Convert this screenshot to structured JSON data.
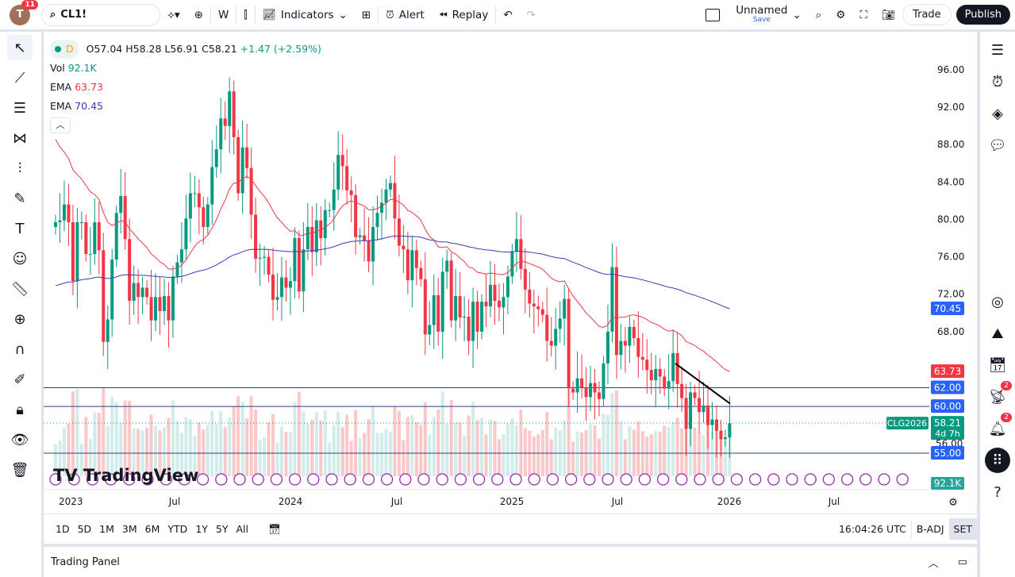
{
  "toolbar": {
    "notifications": "11",
    "avatar": "T",
    "symbol": "CL1!",
    "interval": "W",
    "indicators": "Indicators",
    "alert": "Alert",
    "replay": "Replay",
    "layout_name": "Unnamed",
    "layout_save": "Save",
    "trade": "Trade",
    "publish": "Publish"
  },
  "legend": {
    "interval": "D",
    "open": "O57.04",
    "high": "H58.28",
    "low": "L56.91",
    "close": "C58.21",
    "change": "+1.47 (+2.59%)",
    "vol_label": "Vol",
    "vol": "92.1K",
    "ema1_label": "EMA",
    "ema1": "63.73",
    "ema2_label": "EMA",
    "ema2": "70.45"
  },
  "price_axis": [
    "96.00",
    "92.00",
    "88.00",
    "84.00",
    "80.00",
    "76.00",
    "72.00",
    "68.00"
  ],
  "price_labels": {
    "ema1": "63.73",
    "ema2": "70.45",
    "level1": "62.00",
    "level2": "60.00",
    "level3": "55.00",
    "last": "58.21",
    "countdown": "4d 7h",
    "contract": "CLG2026",
    "volume": "92.1K",
    "partial": "56.00"
  },
  "time_axis": [
    "2023",
    "Jul",
    "2024",
    "Jul",
    "2025",
    "Jul",
    "2026",
    "Jul"
  ],
  "watermark": "TradingView",
  "bottom": {
    "ranges": [
      "1D",
      "5D",
      "1M",
      "3M",
      "6M",
      "YTD",
      "1Y",
      "5Y",
      "All"
    ],
    "time": "16:04:26 UTC",
    "adj": "B-ADJ",
    "session": "SET"
  },
  "panel": {
    "title": "Trading Panel"
  },
  "right_badges": [
    "2",
    "2"
  ],
  "colors": {
    "up": "#089981",
    "down": "#f23645",
    "ema_fast": "#f23645",
    "ema_slow": "#3c3cb4",
    "level": "#2962ff",
    "events": "#9c27b0"
  },
  "chart_data": {
    "type": "candlestick",
    "interval": "weekly",
    "start": "2023-01-02",
    "ylim": [
      53,
      98
    ],
    "levels": [
      62,
      60,
      55
    ],
    "trendline": [
      [
        "2025-09-22",
        64.6
      ],
      [
        "2025-12-29",
        60.3
      ]
    ],
    "closes": [
      79.7,
      79.9,
      81.6,
      79.7,
      73.4,
      79.7,
      79.7,
      76.3,
      76.3,
      79.7,
      76.7,
      66.9,
      69.3,
      75.7,
      80.7,
      82.5,
      77.9,
      71.3,
      73.2,
      71.7,
      72.7,
      71.7,
      69.2,
      71.7,
      70.2,
      71.8,
      69.2,
      73.9,
      75.4,
      76.8,
      80.1,
      82.8,
      82.8,
      81.3,
      79.2,
      81.6,
      85.6,
      87.5,
      90.8,
      90.0,
      93.7,
      88.8,
      82.8,
      87.7,
      85.5,
      80.5,
      75.8,
      75.9,
      76.0,
      74.1,
      71.4,
      71.7,
      73.8,
      72.7,
      73.4,
      78.0,
      72.3,
      76.8,
      79.2,
      76.5,
      79.9,
      78.0,
      81.0,
      81.0,
      83.2,
      86.9,
      85.7,
      83.1,
      82.6,
      78.1,
      78.3,
      77.7,
      75.5,
      79.2,
      80.7,
      81.8,
      83.2,
      83.9,
      80.1,
      77.2,
      76.8,
      73.5,
      76.7,
      74.8,
      73.6,
      67.7,
      68.7,
      71.9,
      68.0,
      74.4,
      75.6,
      69.2,
      71.8,
      69.5,
      69.6,
      67.0,
      71.2,
      68.0,
      71.2,
      70.7,
      73.0,
      71.3,
      70.6,
      71.7,
      73.9,
      76.6,
      77.9,
      74.7,
      72.5,
      71.0,
      70.7,
      70.4,
      69.8,
      67.0,
      66.5,
      68.3,
      69.4,
      71.5,
      61.9,
      61.5,
      63.0,
      62.0,
      61.0,
      62.5,
      61.5,
      60.8,
      64.6,
      68.0,
      74.9,
      65.5,
      67.0,
      66.5,
      68.5,
      67.3,
      65.3,
      65.0,
      63.9,
      62.8,
      64.0,
      63.2,
      61.9,
      62.7,
      65.7,
      62.4,
      60.9,
      57.6,
      61.5,
      60.9,
      59.4,
      60.1,
      58.0,
      58.6,
      57.4,
      56.5,
      56.7,
      58.21
    ]
  }
}
